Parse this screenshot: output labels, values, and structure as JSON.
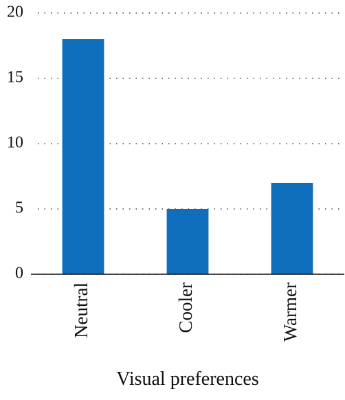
{
  "chart_data": {
    "type": "bar",
    "x_label": "Visual preferences",
    "categories": [
      "Neutral",
      "Cooler",
      "Warmer"
    ],
    "values": [
      18,
      5,
      7
    ],
    "color": "#0f6ebb",
    "ylim": [
      0,
      20
    ],
    "yticks": [
      0,
      5,
      10,
      15,
      20
    ],
    "grid": true
  }
}
